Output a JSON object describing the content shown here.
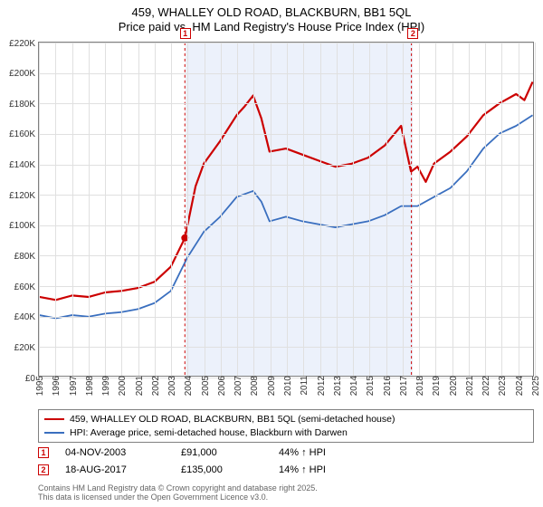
{
  "title_line1": "459, WHALLEY OLD ROAD, BLACKBURN, BB1 5QL",
  "title_line2": "Price paid vs. HM Land Registry's House Price Index (HPI)",
  "chart": {
    "type": "line",
    "x_years": [
      1995,
      1996,
      1997,
      1998,
      1999,
      2000,
      2001,
      2002,
      2003,
      2004,
      2005,
      2006,
      2007,
      2008,
      2009,
      2010,
      2011,
      2012,
      2013,
      2014,
      2015,
      2016,
      2017,
      2018,
      2019,
      2020,
      2021,
      2022,
      2023,
      2024,
      2025
    ],
    "y_min": 0,
    "y_max": 220000,
    "y_tick_step": 20000,
    "y_tick_labels": [
      "£0",
      "£20K",
      "£40K",
      "£60K",
      "£80K",
      "£100K",
      "£120K",
      "£140K",
      "£160K",
      "£180K",
      "£200K",
      "£220K"
    ],
    "band": {
      "start_year": 2003.85,
      "end_year": 2017.63,
      "color": "rgba(100,140,220,0.12)"
    },
    "series": [
      {
        "name": "459, WHALLEY OLD ROAD, BLACKBURN, BB1 5QL (semi-detached house)",
        "color": "#cc0000",
        "width": 2.2,
        "points": [
          [
            1995,
            52000
          ],
          [
            1996,
            50000
          ],
          [
            1997,
            53000
          ],
          [
            1998,
            52000
          ],
          [
            1999,
            55000
          ],
          [
            2000,
            56000
          ],
          [
            2001,
            58000
          ],
          [
            2002,
            62000
          ],
          [
            2003,
            72000
          ],
          [
            2003.85,
            91000
          ],
          [
            2004.5,
            125000
          ],
          [
            2005,
            140000
          ],
          [
            2006,
            155000
          ],
          [
            2007,
            172000
          ],
          [
            2007.5,
            178000
          ],
          [
            2008,
            185000
          ],
          [
            2008.5,
            170000
          ],
          [
            2009,
            148000
          ],
          [
            2010,
            150000
          ],
          [
            2011,
            146000
          ],
          [
            2012,
            142000
          ],
          [
            2013,
            138000
          ],
          [
            2014,
            140000
          ],
          [
            2015,
            144000
          ],
          [
            2016,
            152000
          ],
          [
            2017,
            165000
          ],
          [
            2017.6,
            135000
          ],
          [
            2017.63,
            135000
          ],
          [
            2018,
            138000
          ],
          [
            2018.5,
            128000
          ],
          [
            2019,
            140000
          ],
          [
            2020,
            148000
          ],
          [
            2021,
            158000
          ],
          [
            2022,
            172000
          ],
          [
            2023,
            180000
          ],
          [
            2024,
            186000
          ],
          [
            2024.5,
            182000
          ],
          [
            2025,
            194000
          ]
        ]
      },
      {
        "name": "HPI: Average price, semi-detached house, Blackburn with Darwen",
        "color": "#3a6fbf",
        "width": 1.8,
        "points": [
          [
            1995,
            40000
          ],
          [
            1996,
            38000
          ],
          [
            1997,
            40000
          ],
          [
            1998,
            39000
          ],
          [
            1999,
            41000
          ],
          [
            2000,
            42000
          ],
          [
            2001,
            44000
          ],
          [
            2002,
            48000
          ],
          [
            2003,
            56000
          ],
          [
            2004,
            78000
          ],
          [
            2005,
            95000
          ],
          [
            2006,
            105000
          ],
          [
            2007,
            118000
          ],
          [
            2008,
            122000
          ],
          [
            2008.5,
            115000
          ],
          [
            2009,
            102000
          ],
          [
            2010,
            105000
          ],
          [
            2011,
            102000
          ],
          [
            2012,
            100000
          ],
          [
            2013,
            98000
          ],
          [
            2014,
            100000
          ],
          [
            2015,
            102000
          ],
          [
            2016,
            106000
          ],
          [
            2017,
            112000
          ],
          [
            2018,
            112000
          ],
          [
            2019,
            118000
          ],
          [
            2020,
            124000
          ],
          [
            2021,
            135000
          ],
          [
            2022,
            150000
          ],
          [
            2023,
            160000
          ],
          [
            2024,
            165000
          ],
          [
            2025,
            172000
          ]
        ]
      }
    ],
    "markers_top": [
      {
        "n": "1",
        "year": 2003.85,
        "color": "#cc0000"
      },
      {
        "n": "2",
        "year": 2017.63,
        "color": "#cc0000"
      }
    ],
    "sale_point": {
      "year": 2003.85,
      "price": 91000,
      "color": "#cc0000"
    },
    "axis_fontsize": 10,
    "background_color": "#ffffff",
    "grid_color": "#e0e0e0",
    "border_color": "#808080"
  },
  "legend": {
    "rows": [
      {
        "color": "#cc0000",
        "label": "459, WHALLEY OLD ROAD, BLACKBURN, BB1 5QL (semi-detached house)"
      },
      {
        "color": "#3a6fbf",
        "label": "HPI: Average price, semi-detached house, Blackburn with Darwen"
      }
    ]
  },
  "sales": [
    {
      "n": "1",
      "color": "#cc0000",
      "date": "04-NOV-2003",
      "price": "£91,000",
      "delta": "44% ↑ HPI"
    },
    {
      "n": "2",
      "color": "#cc0000",
      "date": "18-AUG-2017",
      "price": "£135,000",
      "delta": "14% ↑ HPI"
    }
  ],
  "credits_line1": "Contains HM Land Registry data © Crown copyright and database right 2025.",
  "credits_line2": "This data is licensed under the Open Government Licence v3.0."
}
